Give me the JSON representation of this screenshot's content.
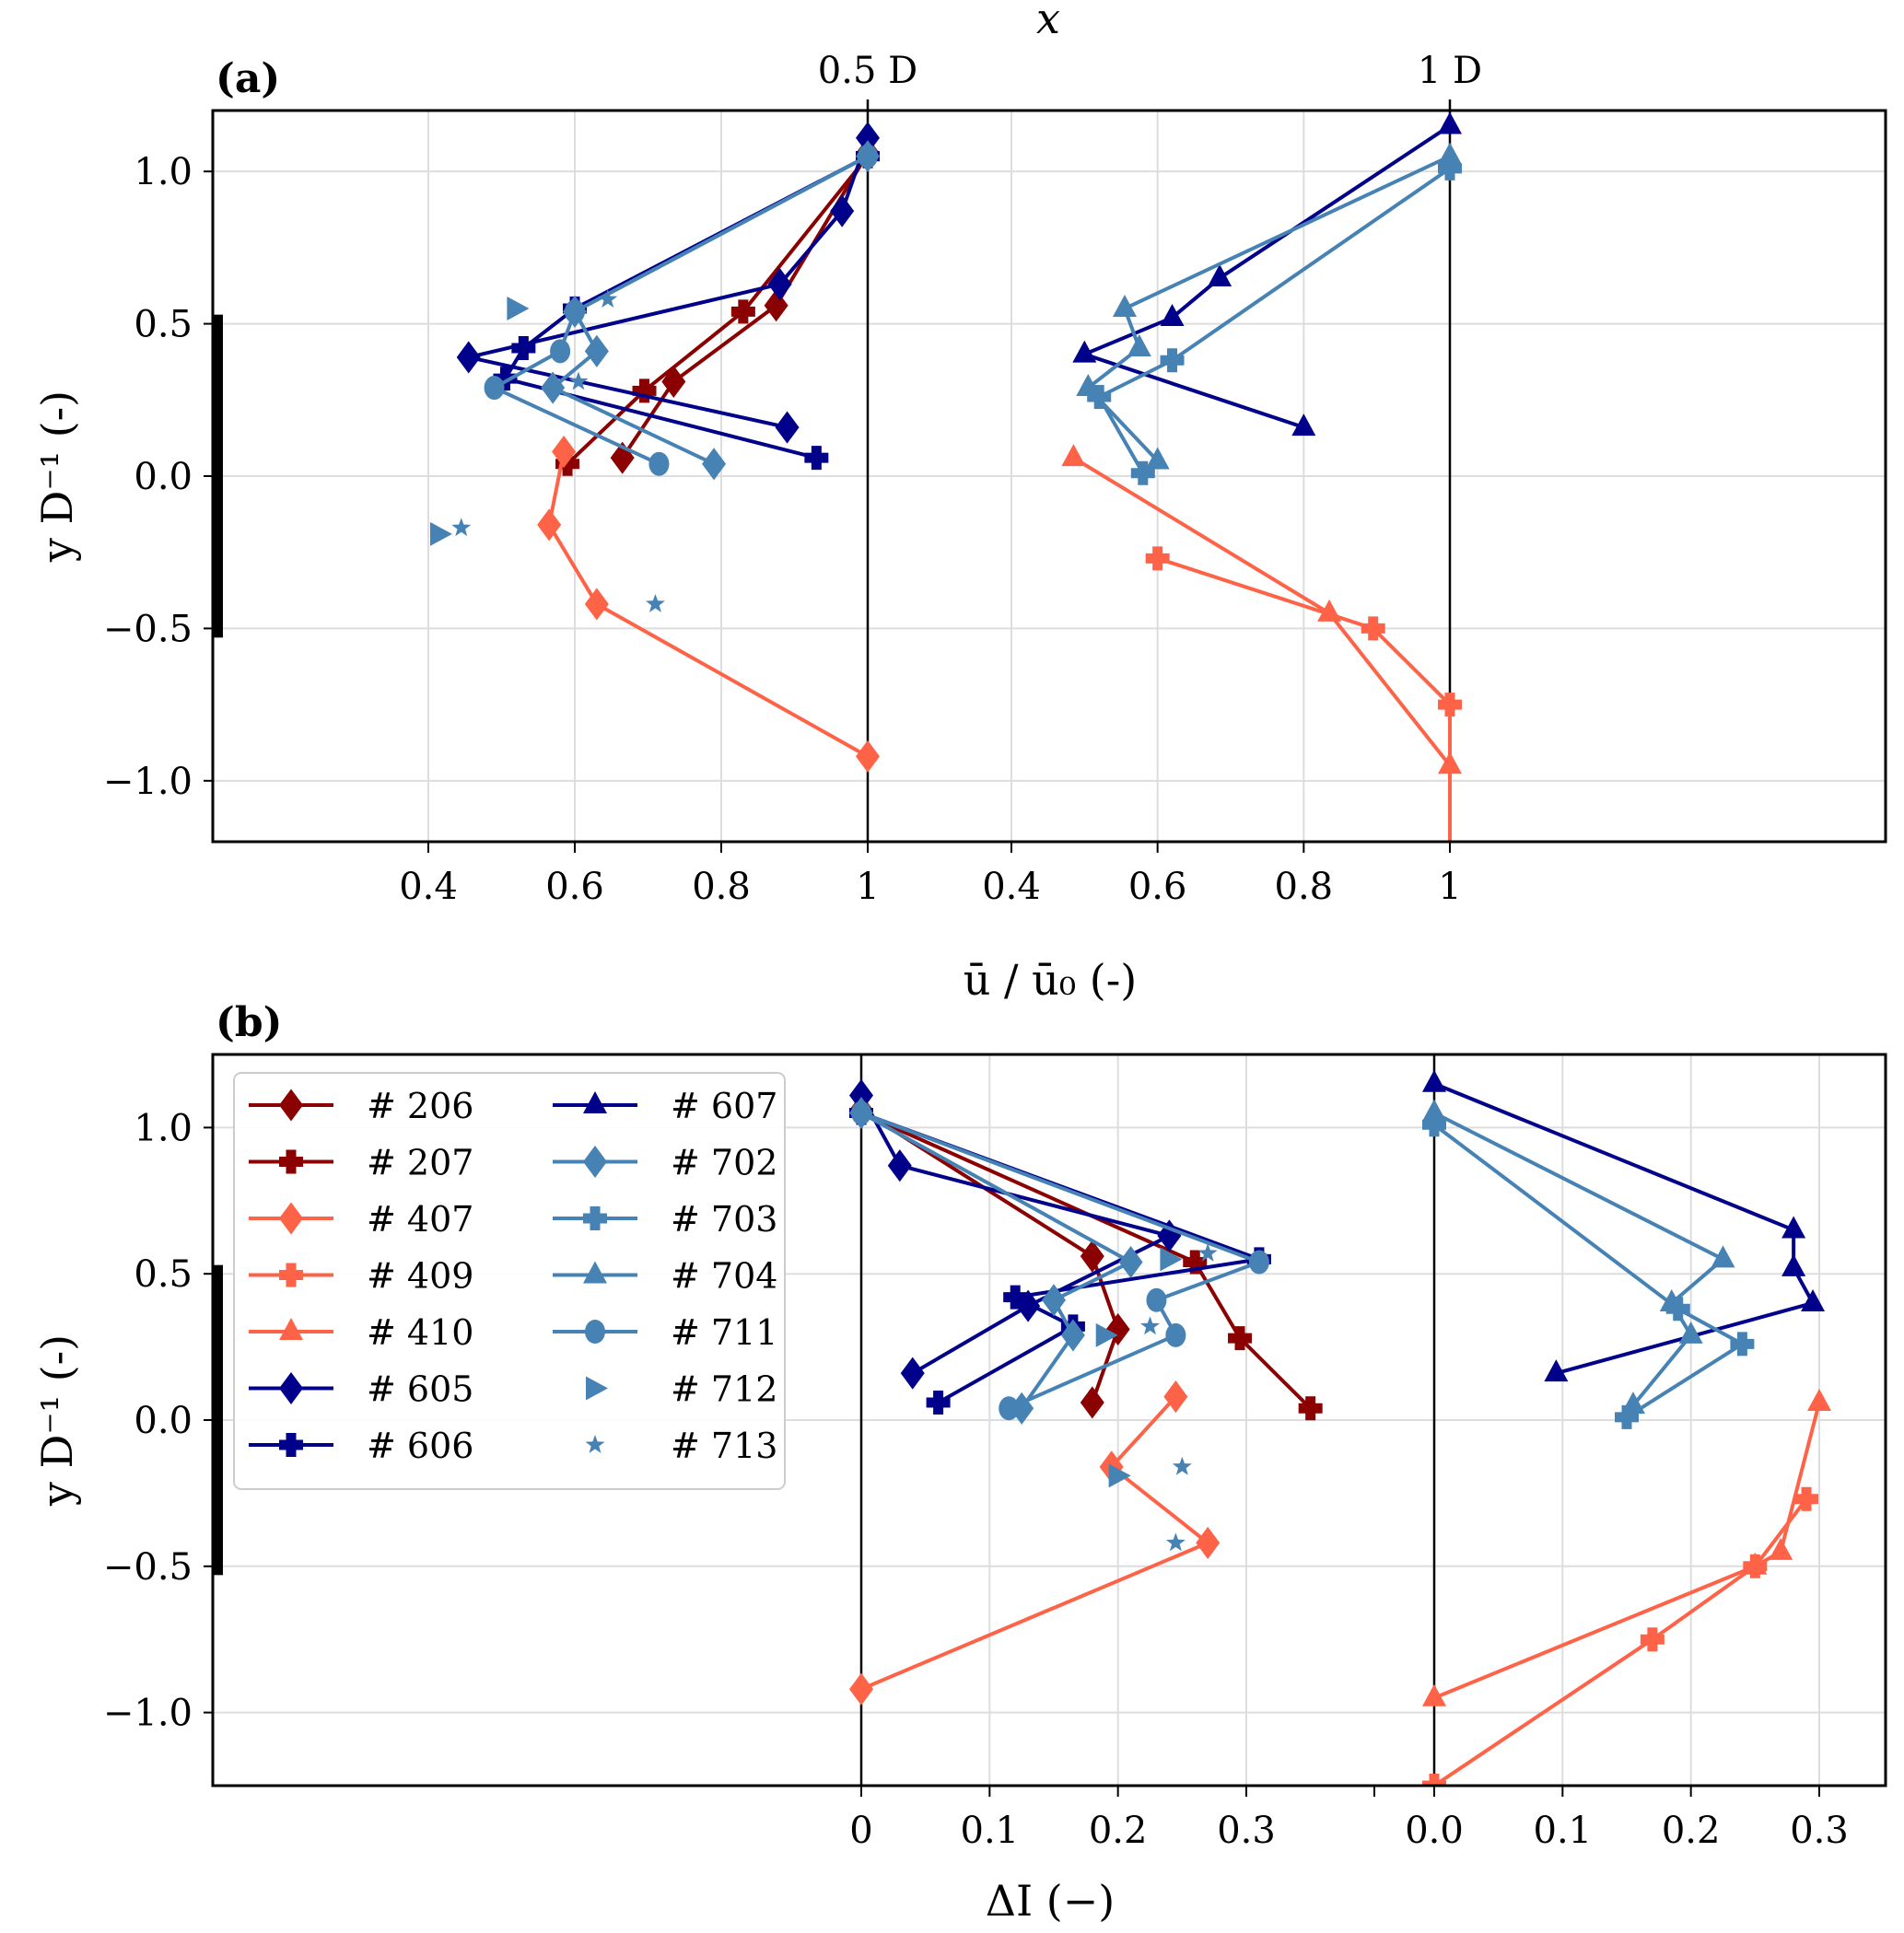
{
  "chart_data": {
    "type": "line",
    "figure_layout": "two stacked panels, each with two sub-profiles at stations x = 0.5 D and x = 1 D",
    "colors": {
      "dark_red": "#8b0000",
      "tomato": "#ff6347",
      "navy": "#00008b",
      "steel_blue": "#4682b4",
      "grid": "#dddddd",
      "body_bar": "#000000"
    },
    "series_styles": [
      {
        "id": "206",
        "label": "# 206",
        "color": "#8b0000",
        "marker": "diamond",
        "line": true
      },
      {
        "id": "207",
        "label": "# 207",
        "color": "#8b0000",
        "marker": "plus",
        "line": true
      },
      {
        "id": "407",
        "label": "# 407",
        "color": "#ff6347",
        "marker": "diamond",
        "line": true
      },
      {
        "id": "409",
        "label": "# 409",
        "color": "#ff6347",
        "marker": "plus",
        "line": true
      },
      {
        "id": "410",
        "label": "# 410",
        "color": "#ff6347",
        "marker": "triangle",
        "line": true
      },
      {
        "id": "605",
        "label": "# 605",
        "color": "#00008b",
        "marker": "diamond",
        "line": true
      },
      {
        "id": "606",
        "label": "# 606",
        "color": "#00008b",
        "marker": "plus",
        "line": true
      },
      {
        "id": "607",
        "label": "# 607",
        "color": "#00008b",
        "marker": "triangle",
        "line": true
      },
      {
        "id": "702",
        "label": "# 702",
        "color": "#4682b4",
        "marker": "diamond",
        "line": true
      },
      {
        "id": "703",
        "label": "# 703",
        "color": "#4682b4",
        "marker": "plus",
        "line": true
      },
      {
        "id": "704",
        "label": "# 704",
        "color": "#4682b4",
        "marker": "triangle",
        "line": true
      },
      {
        "id": "711",
        "label": "# 711",
        "color": "#4682b4",
        "marker": "circle",
        "line": true
      },
      {
        "id": "712",
        "label": "# 712",
        "color": "#4682b4",
        "marker": "triangle-right",
        "line": false
      },
      {
        "id": "713",
        "label": "# 713",
        "color": "#4682b4",
        "marker": "star",
        "line": false
      }
    ],
    "legend": {
      "placement": "upper-left of panel (b)",
      "columns": 2,
      "entries": [
        "# 206",
        "# 207",
        "# 407",
        "# 409",
        "# 410",
        "# 605",
        "# 606",
        "# 607",
        "# 702",
        "# 703",
        "# 704",
        "# 711",
        "# 712",
        "# 713"
      ]
    },
    "panels": [
      {
        "id": "a",
        "panel_label": "(a)",
        "top_axis_title": "x",
        "station_labels": [
          "0.5 D",
          "1 D"
        ],
        "xlabel": "ū / ū₀ (-)",
        "ylabel": "y D⁻¹ (-)",
        "ylim": [
          -1.2,
          1.2
        ],
        "yticks": [
          -1.0,
          -0.5,
          0.0,
          0.5,
          1.0
        ],
        "ytick_labels": [
          "−1.0",
          "−0.5",
          "0.0",
          "0.5",
          "1.0"
        ],
        "grid": true,
        "body_bar": [
          -0.53,
          0.53
        ],
        "subplots": [
          {
            "station": "0.5 D",
            "xlim": [
              0.2,
              1.0
            ],
            "xticks": [
              0.4,
              0.6,
              0.8,
              1.0
            ],
            "xtick_labels": [
              "0.4",
              "0.6",
              "0.8",
              "1"
            ],
            "series": [
              {
                "id": "206",
                "points": [
                  [
                    1.0,
                    1.06
                  ],
                  [
                    0.875,
                    0.56
                  ],
                  [
                    0.735,
                    0.31
                  ],
                  [
                    0.665,
                    0.06
                  ]
                ]
              },
              {
                "id": "207",
                "points": [
                  [
                    1.0,
                    1.05
                  ],
                  [
                    0.83,
                    0.54
                  ],
                  [
                    0.695,
                    0.28
                  ],
                  [
                    0.59,
                    0.04
                  ]
                ]
              },
              {
                "id": "407",
                "points": [
                  [
                    1.0,
                    -0.92
                  ],
                  [
                    0.63,
                    -0.42
                  ],
                  [
                    0.565,
                    -0.16
                  ],
                  [
                    0.585,
                    0.08
                  ]
                ]
              },
              {
                "id": "605",
                "points": [
                  [
                    1.0,
                    1.11
                  ],
                  [
                    0.965,
                    0.87
                  ],
                  [
                    0.88,
                    0.63
                  ],
                  [
                    0.455,
                    0.39
                  ],
                  [
                    0.89,
                    0.16
                  ]
                ]
              },
              {
                "id": "606",
                "points": [
                  [
                    1.0,
                    1.05
                  ],
                  [
                    0.6,
                    0.55
                  ],
                  [
                    0.53,
                    0.42
                  ],
                  [
                    0.505,
                    0.32
                  ],
                  [
                    0.93,
                    0.06
                  ]
                ]
              },
              {
                "id": "702",
                "points": [
                  [
                    1.0,
                    1.05
                  ],
                  [
                    0.6,
                    0.54
                  ],
                  [
                    0.63,
                    0.41
                  ],
                  [
                    0.57,
                    0.29
                  ],
                  [
                    0.79,
                    0.04
                  ]
                ]
              },
              {
                "id": "711",
                "points": [
                  [
                    1.0,
                    1.05
                  ],
                  [
                    0.6,
                    0.54
                  ],
                  [
                    0.58,
                    0.41
                  ],
                  [
                    0.49,
                    0.29
                  ],
                  [
                    0.715,
                    0.04
                  ]
                ]
              },
              {
                "id": "712",
                "points": [
                  [
                    0.52,
                    0.55
                  ],
                  [
                    0.415,
                    -0.19
                  ]
                ]
              },
              {
                "id": "713",
                "points": [
                  [
                    0.645,
                    0.58
                  ],
                  [
                    0.605,
                    0.31
                  ],
                  [
                    0.445,
                    -0.17
                  ],
                  [
                    0.71,
                    -0.42
                  ]
                ]
              }
            ]
          },
          {
            "station": "1 D",
            "xlim": [
              0.2,
              1.3
            ],
            "xticks": [
              0.4,
              0.6,
              0.8,
              1.0
            ],
            "xtick_labels": [
              "0.4",
              "0.6",
              "0.8",
              "1"
            ],
            "series": [
              {
                "id": "409",
                "points": [
                  [
                    1.0,
                    -1.25
                  ],
                  [
                    1.0,
                    -0.75
                  ],
                  [
                    0.895,
                    -0.5
                  ],
                  [
                    0.6,
                    -0.27
                  ]
                ]
              },
              {
                "id": "410",
                "points": [
                  [
                    1.0,
                    -1.25
                  ],
                  [
                    1.0,
                    -0.95
                  ],
                  [
                    0.835,
                    -0.45
                  ],
                  [
                    0.485,
                    0.06
                  ]
                ]
              },
              {
                "id": "607",
                "points": [
                  [
                    1.0,
                    1.15
                  ],
                  [
                    0.685,
                    0.65
                  ],
                  [
                    0.62,
                    0.52
                  ],
                  [
                    0.5,
                    0.4
                  ],
                  [
                    0.8,
                    0.16
                  ]
                ]
              },
              {
                "id": "703",
                "points": [
                  [
                    1.0,
                    1.01
                  ],
                  [
                    0.62,
                    0.38
                  ],
                  [
                    0.52,
                    0.26
                  ],
                  [
                    0.58,
                    0.01
                  ]
                ]
              },
              {
                "id": "704",
                "points": [
                  [
                    1.0,
                    1.05
                  ],
                  [
                    0.555,
                    0.55
                  ],
                  [
                    0.575,
                    0.42
                  ],
                  [
                    0.505,
                    0.29
                  ],
                  [
                    0.6,
                    0.05
                  ]
                ]
              }
            ]
          }
        ]
      },
      {
        "id": "b",
        "panel_label": "(b)",
        "xlabel": "ΔI (−)",
        "ylabel": "y D⁻¹ (-)",
        "ylim": [
          -1.25,
          1.25
        ],
        "yticks": [
          -1.0,
          -0.5,
          0.0,
          0.5,
          1.0
        ],
        "ytick_labels": [
          "−1.0",
          "−0.5",
          "0.0",
          "0.5",
          "1.0"
        ],
        "grid": true,
        "body_bar": [
          -0.53,
          0.53
        ],
        "subplots": [
          {
            "station": "0.5 D",
            "xlim": [
              -0.3,
              0.45
            ],
            "xticks": [
              0.0,
              0.1,
              0.2,
              0.3
            ],
            "xtick_labels": [
              "0",
              "0.1",
              "0.2",
              "0.3"
            ],
            "series": [
              {
                "id": "206",
                "points": [
                  [
                    0.0,
                    1.06
                  ],
                  [
                    0.18,
                    0.56
                  ],
                  [
                    0.2,
                    0.31
                  ],
                  [
                    0.18,
                    0.06
                  ]
                ]
              },
              {
                "id": "207",
                "points": [
                  [
                    0.0,
                    1.05
                  ],
                  [
                    0.26,
                    0.54
                  ],
                  [
                    0.295,
                    0.28
                  ],
                  [
                    0.35,
                    0.04
                  ]
                ]
              },
              {
                "id": "407",
                "points": [
                  [
                    0.0,
                    -0.92
                  ],
                  [
                    0.27,
                    -0.42
                  ],
                  [
                    0.195,
                    -0.16
                  ],
                  [
                    0.245,
                    0.08
                  ]
                ]
              },
              {
                "id": "605",
                "points": [
                  [
                    0.0,
                    1.11
                  ],
                  [
                    0.03,
                    0.87
                  ],
                  [
                    0.24,
                    0.63
                  ],
                  [
                    0.13,
                    0.39
                  ],
                  [
                    0.04,
                    0.16
                  ]
                ]
              },
              {
                "id": "606",
                "points": [
                  [
                    0.0,
                    1.05
                  ],
                  [
                    0.31,
                    0.55
                  ],
                  [
                    0.12,
                    0.42
                  ],
                  [
                    0.165,
                    0.32
                  ],
                  [
                    0.06,
                    0.06
                  ]
                ]
              },
              {
                "id": "702",
                "points": [
                  [
                    0.0,
                    1.05
                  ],
                  [
                    0.21,
                    0.54
                  ],
                  [
                    0.15,
                    0.41
                  ],
                  [
                    0.165,
                    0.29
                  ],
                  [
                    0.125,
                    0.04
                  ]
                ]
              },
              {
                "id": "711",
                "points": [
                  [
                    0.0,
                    1.05
                  ],
                  [
                    0.31,
                    0.54
                  ],
                  [
                    0.23,
                    0.41
                  ],
                  [
                    0.245,
                    0.29
                  ],
                  [
                    0.115,
                    0.04
                  ]
                ]
              },
              {
                "id": "712",
                "points": [
                  [
                    0.24,
                    0.55
                  ],
                  [
                    0.19,
                    0.29
                  ],
                  [
                    0.2,
                    -0.19
                  ]
                ]
              },
              {
                "id": "713",
                "points": [
                  [
                    0.27,
                    0.57
                  ],
                  [
                    0.225,
                    0.32
                  ],
                  [
                    0.25,
                    -0.16
                  ],
                  [
                    0.245,
                    -0.42
                  ]
                ]
              }
            ]
          },
          {
            "station": "1 D",
            "xlim": [
              -0.05,
              0.35
            ],
            "xticks": [
              0.0,
              0.1,
              0.2,
              0.3
            ],
            "xtick_labels": [
              "0.0",
              "0.1",
              "0.2",
              "0.3"
            ],
            "series": [
              {
                "id": "409",
                "points": [
                  [
                    0.0,
                    -1.25
                  ],
                  [
                    0.17,
                    -0.75
                  ],
                  [
                    0.25,
                    -0.5
                  ],
                  [
                    0.29,
                    -0.27
                  ]
                ]
              },
              {
                "id": "410",
                "points": [
                  [
                    0.0,
                    -0.95
                  ],
                  [
                    0.25,
                    -0.5
                  ],
                  [
                    0.27,
                    -0.45
                  ],
                  [
                    0.3,
                    0.06
                  ]
                ]
              },
              {
                "id": "607",
                "points": [
                  [
                    0.0,
                    1.15
                  ],
                  [
                    0.28,
                    0.65
                  ],
                  [
                    0.28,
                    0.52
                  ],
                  [
                    0.295,
                    0.4
                  ],
                  [
                    0.095,
                    0.16
                  ]
                ]
              },
              {
                "id": "703",
                "points": [
                  [
                    0.0,
                    1.01
                  ],
                  [
                    0.19,
                    0.38
                  ],
                  [
                    0.24,
                    0.26
                  ],
                  [
                    0.15,
                    0.01
                  ]
                ]
              },
              {
                "id": "704",
                "points": [
                  [
                    0.0,
                    1.05
                  ],
                  [
                    0.225,
                    0.55
                  ],
                  [
                    0.185,
                    0.4
                  ],
                  [
                    0.2,
                    0.29
                  ],
                  [
                    0.155,
                    0.05
                  ]
                ]
              }
            ]
          }
        ]
      }
    ]
  }
}
